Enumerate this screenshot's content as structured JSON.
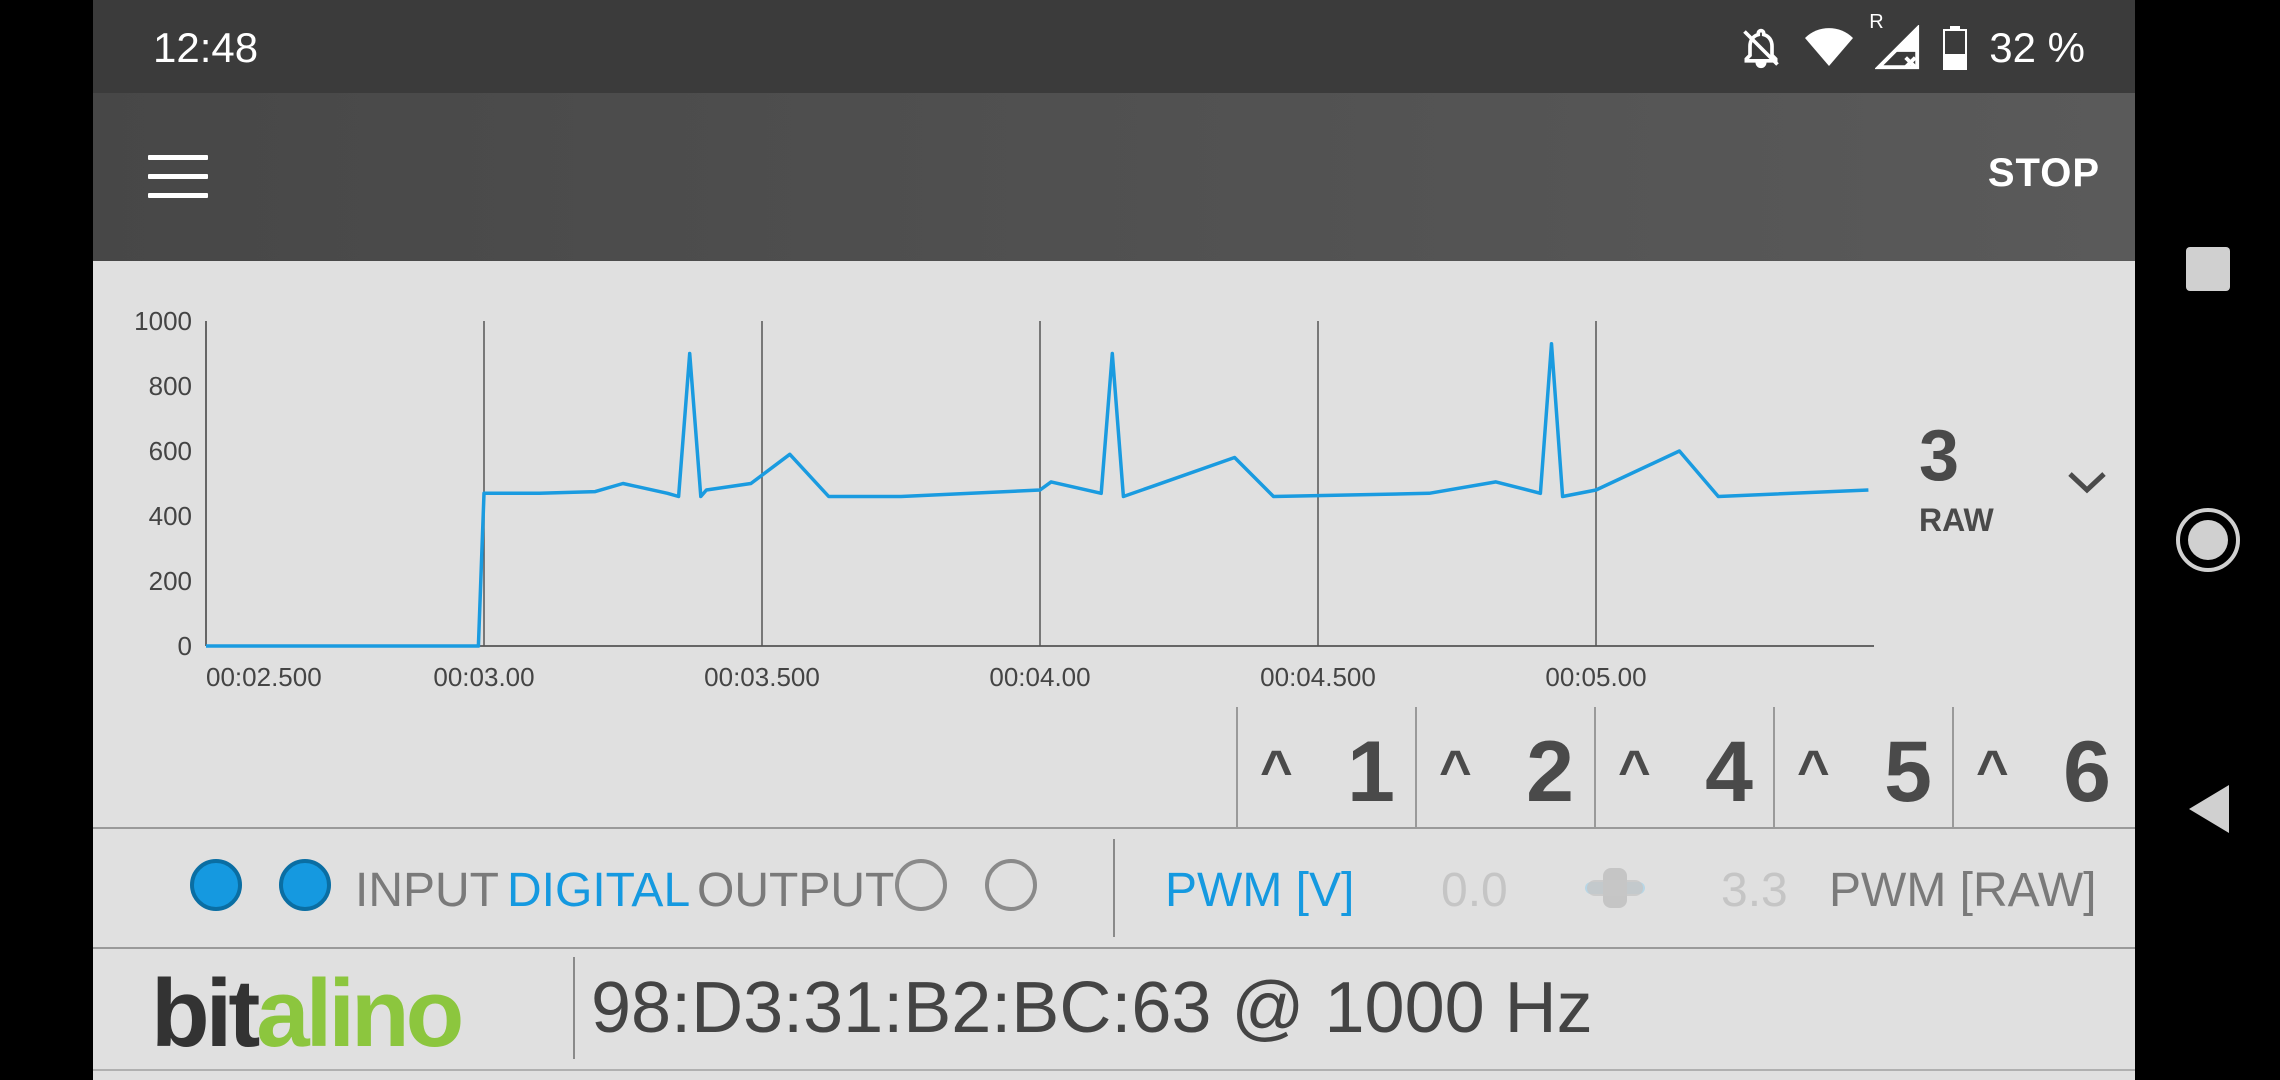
{
  "status_bar": {
    "time": "12:48",
    "battery": "32 %",
    "icons": [
      "notifications-off-icon",
      "wifi-icon",
      "signal-roaming-icon",
      "battery-icon"
    ],
    "roaming_badge": "R"
  },
  "toolbar": {
    "menu_icon": "hamburger-menu-icon",
    "stop_label": "STOP"
  },
  "chart_data": {
    "type": "line",
    "series": [
      {
        "color": "#1a9be0",
        "points": [
          [
            "00:02.500",
            0
          ],
          [
            "00:02.990",
            0
          ],
          [
            "00:03.000",
            470
          ],
          [
            "00:03.100",
            470
          ],
          [
            "00:03.200",
            475
          ],
          [
            "00:03.250",
            500
          ],
          [
            "00:03.330",
            470
          ],
          [
            "00:03.350",
            460
          ],
          [
            "00:03.370",
            900
          ],
          [
            "00:03.390",
            460
          ],
          [
            "00:03.400",
            480
          ],
          [
            "00:03.480",
            500
          ],
          [
            "00:03.550",
            590
          ],
          [
            "00:03.620",
            460
          ],
          [
            "00:03.750",
            460
          ],
          [
            "00:04.000",
            480
          ],
          [
            "00:04.020",
            505
          ],
          [
            "00:04.110",
            470
          ],
          [
            "00:04.130",
            900
          ],
          [
            "00:04.150",
            460
          ],
          [
            "00:04.200",
            490
          ],
          [
            "00:04.350",
            580
          ],
          [
            "00:04.420",
            460
          ],
          [
            "00:04.700",
            470
          ],
          [
            "00:04.820",
            505
          ],
          [
            "00:04.900",
            470
          ],
          [
            "00:04.920",
            930
          ],
          [
            "00:04.940",
            460
          ],
          [
            "00:05.000",
            480
          ],
          [
            "00:05.150",
            600
          ],
          [
            "00:05.220",
            460
          ],
          [
            "00:05.490",
            480
          ]
        ]
      }
    ],
    "y_ticks": [
      "1000",
      "800",
      "600",
      "400",
      "200",
      "0"
    ],
    "x_ticks": [
      "00:02.500",
      "00:03.00",
      "00:03.500",
      "00:04.00",
      "00:04.500",
      "00:05.00"
    ],
    "ylim": [
      0,
      1000
    ],
    "xlim_seconds": [
      2.5,
      5.5
    ],
    "grid": "vertical lines at each x tick"
  },
  "channel_display": {
    "number": "3",
    "mode": "RAW",
    "dropdown_icon": "chevron-down-icon"
  },
  "channels": [
    {
      "caret": "^",
      "label": "1"
    },
    {
      "caret": "^",
      "label": "2"
    },
    {
      "caret": "^",
      "label": "4"
    },
    {
      "caret": "^",
      "label": "5"
    },
    {
      "caret": "^",
      "label": "6"
    }
  ],
  "io": {
    "input_label": "INPUT",
    "digital_label": "DIGITAL",
    "output_label": "OUTPUT",
    "pwm_v_label": "PWM [V]",
    "pwm_min": "0.0",
    "pwm_max": "3.3",
    "pwm_raw_label": "PWM [RAW]",
    "colors": {
      "accent": "#1599e0",
      "muted": "#7a7a7a",
      "disabled": "#c5c5c5"
    }
  },
  "footer": {
    "logo_bit": "bit",
    "logo_alino": "alino",
    "device": "98:D3:31:B2:BC:63 @ 1000 Hz"
  },
  "nav": {
    "recents_icon": "recents-square-icon",
    "home_icon": "home-circle-icon",
    "back_icon": "back-triangle-icon"
  }
}
